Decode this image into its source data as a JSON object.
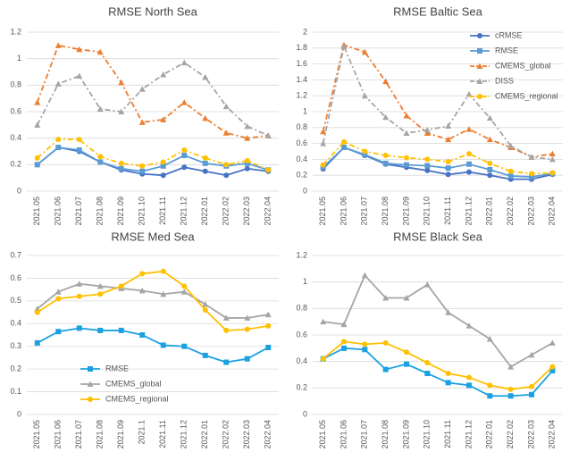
{
  "chart_data": [
    {
      "type": "line",
      "title": "RMSE North Sea",
      "categories": [
        "2021.05",
        "2021.06",
        "2021.07",
        "2021.08",
        "2021.09",
        "2021.10",
        "2021.11",
        "2021.12",
        "2022.01",
        "2022.02",
        "2022.03",
        "2022.04"
      ],
      "ylim": [
        0,
        1.2
      ],
      "yticks": [
        0,
        0.2,
        0.4,
        0.6,
        0.8,
        1,
        1.2
      ],
      "grid": true,
      "series": [
        {
          "color": "#4472c4",
          "marker": "circle",
          "dash": false,
          "values": [
            0.2,
            0.33,
            0.3,
            0.22,
            0.16,
            0.13,
            0.12,
            0.18,
            0.15,
            0.12,
            0.17,
            0.15
          ]
        },
        {
          "color": "#5b9bd5",
          "marker": "square",
          "dash": false,
          "values": [
            0.2,
            0.33,
            0.31,
            0.22,
            0.17,
            0.15,
            0.19,
            0.27,
            0.21,
            0.19,
            0.21,
            0.16
          ]
        },
        {
          "color": "#ed7d31",
          "marker": "triangle",
          "dash": true,
          "values": [
            0.67,
            1.1,
            1.07,
            1.05,
            0.82,
            0.52,
            0.54,
            0.67,
            0.55,
            0.44,
            0.4,
            0.42
          ]
        },
        {
          "color": "#a5a5a5",
          "marker": "triangle",
          "dash": true,
          "values": [
            0.5,
            0.81,
            0.87,
            0.62,
            0.6,
            0.77,
            0.88,
            0.97,
            0.86,
            0.64,
            0.49,
            0.42
          ]
        },
        {
          "color": "#ffc000",
          "marker": "circle",
          "dash": true,
          "values": [
            0.25,
            0.39,
            0.39,
            0.26,
            0.21,
            0.19,
            0.22,
            0.31,
            0.25,
            0.2,
            0.23,
            0.16
          ]
        }
      ]
    },
    {
      "type": "line",
      "title": "RMSE Baltic Sea",
      "categories": [
        "2021.05",
        "2021.06",
        "2021.07",
        "2021.08",
        "2021.09",
        "2021.10",
        "2021.11",
        "2021.12",
        "2022.01",
        "2022.02",
        "2022.03",
        "2022.04"
      ],
      "ylim": [
        0,
        2
      ],
      "yticks": [
        0,
        0.2,
        0.4,
        0.6,
        0.8,
        1,
        1.2,
        1.4,
        1.6,
        1.8,
        2
      ],
      "grid": true,
      "legend": "upper right",
      "series": [
        {
          "name": "cRMSE",
          "color": "#4472c4",
          "marker": "circle",
          "dash": false,
          "values": [
            0.28,
            0.55,
            0.45,
            0.34,
            0.3,
            0.26,
            0.21,
            0.24,
            0.2,
            0.15,
            0.15,
            0.21
          ]
        },
        {
          "name": "RMSE",
          "color": "#5b9bd5",
          "marker": "square",
          "dash": false,
          "values": [
            0.3,
            0.55,
            0.46,
            0.35,
            0.33,
            0.32,
            0.29,
            0.34,
            0.27,
            0.19,
            0.18,
            0.22
          ]
        },
        {
          "name": "CMEMS_global",
          "color": "#ed7d31",
          "marker": "triangle",
          "dash": true,
          "values": [
            0.75,
            1.84,
            1.75,
            1.38,
            0.95,
            0.73,
            0.65,
            0.78,
            0.65,
            0.55,
            0.43,
            0.47
          ]
        },
        {
          "name": "DISS",
          "color": "#a5a5a5",
          "marker": "triangle",
          "dash": true,
          "values": [
            0.6,
            1.82,
            1.2,
            0.93,
            0.73,
            0.77,
            0.82,
            1.22,
            0.92,
            0.57,
            0.43,
            0.4
          ]
        },
        {
          "name": "CMEMS_regional",
          "color": "#ffc000",
          "marker": "circle",
          "dash": true,
          "values": [
            0.33,
            0.62,
            0.5,
            0.45,
            0.42,
            0.4,
            0.37,
            0.47,
            0.35,
            0.25,
            0.22,
            0.23
          ]
        }
      ]
    },
    {
      "type": "line",
      "title": "RMSE Med Sea",
      "categories": [
        "2021.05",
        "2021.06",
        "2021.07",
        "2021.08",
        "2021.09",
        "2021.1",
        "2021.11",
        "2021.12",
        "2022.01",
        "2022.02",
        "2022.03",
        "2022.04"
      ],
      "ylim": [
        0,
        0.7
      ],
      "yticks": [
        0,
        0.1,
        0.2,
        0.3,
        0.4,
        0.5,
        0.6,
        0.7
      ],
      "grid": true,
      "legend": "lower left",
      "series": [
        {
          "name": "RMSE",
          "color": "#1ba1e2",
          "marker": "square",
          "dash": false,
          "values": [
            0.315,
            0.365,
            0.38,
            0.37,
            0.37,
            0.35,
            0.305,
            0.3,
            0.26,
            0.23,
            0.245,
            0.295
          ]
        },
        {
          "name": "CMEMS_global",
          "color": "#a5a5a5",
          "marker": "triangle",
          "dash": false,
          "values": [
            0.465,
            0.54,
            0.575,
            0.565,
            0.555,
            0.545,
            0.53,
            0.54,
            0.485,
            0.425,
            0.425,
            0.44
          ]
        },
        {
          "name": "CMEMS_regional",
          "color": "#ffc000",
          "marker": "circle",
          "dash": false,
          "values": [
            0.45,
            0.51,
            0.52,
            0.53,
            0.565,
            0.62,
            0.63,
            0.565,
            0.46,
            0.37,
            0.375,
            0.39
          ]
        }
      ]
    },
    {
      "type": "line",
      "title": "RMSE Black Sea",
      "categories": [
        "2021.05",
        "2021.06",
        "2021.07",
        "2021.08",
        "2021.09",
        "2021.10",
        "2021.11",
        "2021.12",
        "2022.01",
        "2022.02",
        "2022.03",
        "2022.04"
      ],
      "ylim": [
        0,
        1.2
      ],
      "yticks": [
        0,
        0.2,
        0.4,
        0.6,
        0.8,
        1,
        1.2
      ],
      "grid": true,
      "series": [
        {
          "color": "#1ba1e2",
          "marker": "square",
          "dash": false,
          "values": [
            0.42,
            0.5,
            0.49,
            0.34,
            0.38,
            0.31,
            0.24,
            0.22,
            0.14,
            0.14,
            0.15,
            0.33
          ]
        },
        {
          "color": "#a5a5a5",
          "marker": "triangle",
          "dash": false,
          "values": [
            0.7,
            0.68,
            1.05,
            0.88,
            0.88,
            0.98,
            0.77,
            0.67,
            0.57,
            0.36,
            0.45,
            0.54
          ]
        },
        {
          "color": "#ffc000",
          "marker": "circle",
          "dash": false,
          "values": [
            0.42,
            0.55,
            0.53,
            0.54,
            0.47,
            0.39,
            0.31,
            0.28,
            0.22,
            0.19,
            0.21,
            0.36
          ]
        }
      ]
    }
  ]
}
